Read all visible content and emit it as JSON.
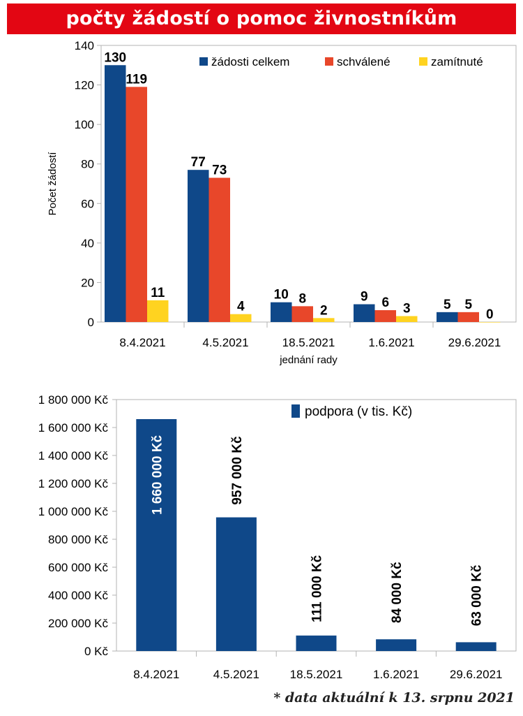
{
  "banner": {
    "title": "počty žádostí o pomoc živnostníkům"
  },
  "chart_data": [
    {
      "type": "bar",
      "categories": [
        "8.4.2021",
        "4.5.2021",
        "18.5.2021",
        "1.6.2021",
        "29.6.2021"
      ],
      "series": [
        {
          "name": "žádosti celkem",
          "values": [
            130,
            77,
            10,
            9,
            5
          ],
          "color": "#0f4889"
        },
        {
          "name": "schválené",
          "values": [
            119,
            73,
            8,
            6,
            5
          ],
          "color": "#e8472a"
        },
        {
          "name": "zamítnuté",
          "values": [
            11,
            4,
            2,
            3,
            0
          ],
          "color": "#ffd320"
        }
      ],
      "xlabel": "jednání rady",
      "ylabel": "Počet žádostí",
      "ylim": [
        0,
        140
      ],
      "yticks": [
        0,
        20,
        40,
        60,
        80,
        100,
        120,
        140
      ],
      "grid": false,
      "legend": "top-right"
    },
    {
      "type": "bar",
      "categories": [
        "8.4.2021",
        "4.5.2021",
        "18.5.2021",
        "1.6.2021",
        "29.6.2021"
      ],
      "series": [
        {
          "name": "podpora (v tis. Kč)",
          "values": [
            1660000,
            957000,
            111000,
            84000,
            63000
          ],
          "color": "#0f4889"
        }
      ],
      "data_labels": [
        "1 660 000 Kč",
        "957 000 Kč",
        "111 000 Kč",
        "84 000 Kč",
        "63 000 Kč"
      ],
      "ylim": [
        0,
        1800000
      ],
      "ytick_labels": [
        "0 Kč",
        "200 000 Kč",
        "400 000 Kč",
        "600 000 Kč",
        "800 000 Kč",
        "1 000 000 Kč",
        "1 200 000 Kč",
        "1 400 000 Kč",
        "1 600 000 Kč",
        "1 800 000 Kč"
      ],
      "grid": false,
      "legend": "top-right"
    }
  ],
  "footnote": "* data aktuální k 13. srpnu 2021"
}
